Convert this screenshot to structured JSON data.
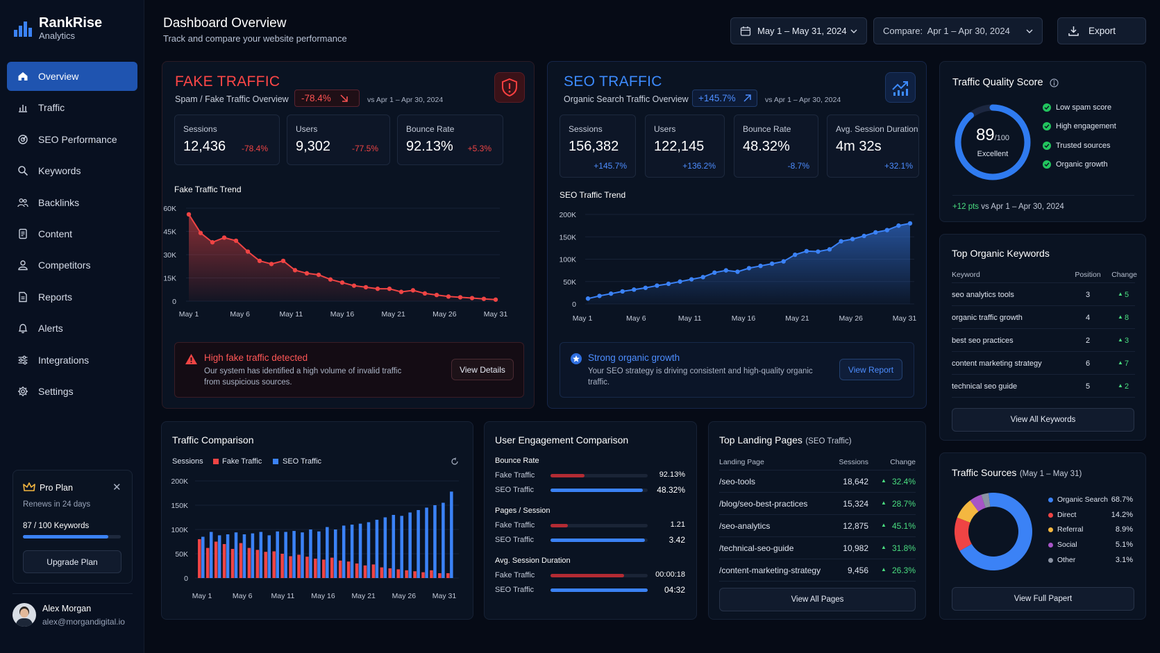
{
  "app": {
    "name": "RankRise",
    "subtitle": "Analytics"
  },
  "nav": [
    {
      "label": "Overview",
      "icon": "home-icon"
    },
    {
      "label": "Traffic",
      "icon": "bar-chart-icon"
    },
    {
      "label": "SEO Performance",
      "icon": "target-icon"
    },
    {
      "label": "Keywords",
      "icon": "search-icon"
    },
    {
      "label": "Backlinks",
      "icon": "users-icon"
    },
    {
      "label": "Content",
      "icon": "document-icon"
    },
    {
      "label": "Competitors",
      "icon": "person-icon"
    },
    {
      "label": "Reports",
      "icon": "report-icon"
    },
    {
      "label": "Alerts",
      "icon": "bell-icon"
    },
    {
      "label": "Integrations",
      "icon": "sliders-icon"
    },
    {
      "label": "Settings",
      "icon": "gear-icon"
    }
  ],
  "plan": {
    "title": "Pro Plan",
    "renews": "Renews in 24 days",
    "keywords": "87 / 100 Keywords",
    "usage": 0.87,
    "button": "Upgrade Plan"
  },
  "user": {
    "name": "Alex Morgan",
    "email": "alex@morgandigital.io"
  },
  "header": {
    "title": "Dashboard Overview",
    "subtitle": "Track and compare your website performance",
    "date_range": "May 1 – May 31, 2024",
    "compare": "Compare:  Apr 1 – Apr 30, 2024",
    "export": "Export"
  },
  "fake": {
    "title": "FAKE TRAFFIC",
    "subtitle": "Spam / Fake Traffic Overview",
    "change": "-78.4%",
    "vs": "vs Apr 1 – Apr 30, 2024",
    "stats": [
      {
        "label": "Sessions",
        "value": "12,436",
        "change": "-78.4%"
      },
      {
        "label": "Users",
        "value": "9,302",
        "change": "-77.5%"
      },
      {
        "label": "Bounce Rate",
        "value": "92.13%",
        "change": "+5.3%"
      }
    ],
    "trend_title": "Fake Traffic Trend",
    "alert": {
      "title": "High fake traffic detected",
      "text1": "Our system has identified a high volume of invalid traffic",
      "text2": "from suspicious sources.",
      "button": "View Details"
    }
  },
  "seo": {
    "title": "SEO TRAFFIC",
    "subtitle": "Organic Search Traffic Overview",
    "change": "+145.7%",
    "vs": "vs Apr 1 – Apr 30, 2024",
    "stats": [
      {
        "label": "Sessions",
        "value": "156,382",
        "change": "+145.7%"
      },
      {
        "label": "Users",
        "value": "122,145",
        "change": "+136.2%"
      },
      {
        "label": "Bounce Rate",
        "value": "48.32%",
        "change": "-8.7%"
      },
      {
        "label": "Avg. Session Duration",
        "value": "4m 32s",
        "change": "+32.1%"
      }
    ],
    "trend_title": "SEO Traffic Trend",
    "alert": {
      "title": "Strong organic growth",
      "text1": "Your SEO strategy is driving consistent and high-quality organic",
      "text2": "traffic.",
      "button": "View Report"
    }
  },
  "quality": {
    "title": "Traffic Quality Score",
    "score": "89",
    "max": "/100",
    "rating": "Excellent",
    "score_fraction": 0.89,
    "items": [
      "Low spam score",
      "High engagement",
      "Trusted sources",
      "Organic growth"
    ],
    "delta": "+12 pts",
    "delta_vs": "vs Apr 1 – Apr 30, 2024"
  },
  "keywords": {
    "title": "Top Organic Keywords",
    "headers": [
      "Keyword",
      "Position",
      "Change"
    ],
    "rows": [
      {
        "keyword": "seo analytics tools",
        "position": "3",
        "change": "5"
      },
      {
        "keyword": "organic traffic growth",
        "position": "4",
        "change": "8"
      },
      {
        "keyword": "best seo practices",
        "position": "2",
        "change": "3"
      },
      {
        "keyword": "content marketing strategy",
        "position": "6",
        "change": "7"
      },
      {
        "keyword": "technical seo guide",
        "position": "5",
        "change": "2"
      }
    ],
    "button": "View All Keywords"
  },
  "comparison": {
    "title": "Traffic Comparison",
    "label": "Sessions",
    "legend": [
      "Fake Traffic",
      "SEO Traffic"
    ]
  },
  "engagement": {
    "title": "User Engagement Comparison",
    "groups": [
      {
        "label": "Bounce Rate",
        "rows": [
          {
            "name": "Fake Traffic",
            "value": "92.13%",
            "fill": 0.35
          },
          {
            "name": "SEO Traffic",
            "value": "48.32%",
            "fill": 0.95
          }
        ]
      },
      {
        "label": "Pages / Session",
        "rows": [
          {
            "name": "Fake Traffic",
            "value": "1.21",
            "fill": 0.18
          },
          {
            "name": "SEO Traffic",
            "value": "3.42",
            "fill": 0.97
          }
        ]
      },
      {
        "label": "Avg. Session Duration",
        "rows": [
          {
            "name": "Fake Traffic",
            "value": "00:00:18",
            "fill": 0.76
          },
          {
            "name": "SEO Traffic",
            "value": "04:32",
            "fill": 1.0
          }
        ]
      }
    ]
  },
  "landing": {
    "title": "Top Landing Pages",
    "title_note": "(SEO Traffic)",
    "headers": [
      "Landing Page",
      "Sessions",
      "Change"
    ],
    "rows": [
      {
        "page": "/seo-tools",
        "sessions": "18,642",
        "change": "32.4%"
      },
      {
        "page": "/blog/seo-best-practices",
        "sessions": "15,324",
        "change": "28.7%"
      },
      {
        "page": "/seo-analytics",
        "sessions": "12,875",
        "change": "45.1%"
      },
      {
        "page": "/technical-seo-guide",
        "sessions": "10,982",
        "change": "31.8%"
      },
      {
        "page": "/content-marketing-strategy",
        "sessions": "9,456",
        "change": "26.3%"
      }
    ],
    "button": "View All Pages"
  },
  "sources": {
    "title": "Traffic Sources",
    "title_note": "(May 1 – May 31)",
    "button": "View Full Papert"
  },
  "chart_data": [
    {
      "type": "area",
      "title": "Fake Traffic Trend",
      "x_ticks": [
        "May 1",
        "May 6",
        "May 11",
        "May 16",
        "May 21",
        "May 26",
        "May 31"
      ],
      "y_ticks": [
        "60K",
        "45K",
        "30K",
        "15K",
        "0"
      ],
      "ylim": [
        0,
        60000
      ],
      "color": "#ef4444",
      "values": [
        56000,
        44000,
        38000,
        41000,
        39000,
        32000,
        26000,
        24000,
        26000,
        20000,
        18000,
        17000,
        14000,
        12000,
        10000,
        9000,
        8000,
        8000,
        6000,
        7000,
        5000,
        4000,
        3000,
        2500,
        2000,
        1500,
        1000
      ]
    },
    {
      "type": "area",
      "title": "SEO Traffic Trend",
      "x_ticks": [
        "May 1",
        "May 6",
        "May 11",
        "May 16",
        "May 21",
        "May 26",
        "May 31"
      ],
      "y_ticks": [
        "200K",
        "150K",
        "100K",
        "50K",
        "0"
      ],
      "ylim": [
        0,
        200000
      ],
      "color": "#3b82f6",
      "values": [
        12000,
        18000,
        23000,
        28000,
        32000,
        36000,
        41000,
        45000,
        50000,
        55000,
        60000,
        70000,
        75000,
        72000,
        80000,
        85000,
        90000,
        95000,
        110000,
        118000,
        117000,
        122000,
        140000,
        145000,
        152000,
        160000,
        165000,
        175000,
        180000
      ]
    },
    {
      "type": "bar",
      "title": "Traffic Comparison",
      "x_ticks": [
        "May 1",
        "May 6",
        "May 11",
        "May 16",
        "May 21",
        "May 26",
        "May 31"
      ],
      "y_ticks": [
        "200K",
        "150K",
        "100K",
        "50K",
        "0"
      ],
      "ylim": [
        0,
        200000
      ],
      "series": [
        {
          "name": "Fake Traffic",
          "color": "#ef4444",
          "values": [
            80000,
            62000,
            75000,
            70000,
            60000,
            72000,
            62000,
            58000,
            54000,
            55000,
            50000,
            45000,
            48000,
            44000,
            40000,
            38000,
            42000,
            36000,
            34000,
            30000,
            26000,
            28000,
            22000,
            20000,
            18000,
            16000,
            14000,
            12000,
            16000,
            10000,
            10000
          ]
        },
        {
          "name": "SEO Traffic",
          "color": "#3b82f6",
          "values": [
            85000,
            95000,
            88000,
            90000,
            94000,
            90000,
            92000,
            95000,
            88000,
            96000,
            95000,
            97000,
            94000,
            100000,
            96000,
            105000,
            100000,
            108000,
            110000,
            112000,
            115000,
            120000,
            125000,
            130000,
            128000,
            135000,
            140000,
            145000,
            150000,
            155000,
            178000
          ]
        }
      ]
    },
    {
      "type": "pie",
      "title": "Traffic Sources",
      "slices": [
        {
          "label": "Organic Search",
          "value": 68.7,
          "display": "68.7%",
          "color": "#3b82f6"
        },
        {
          "label": "Direct",
          "value": 14.2,
          "display": "14.2%",
          "color": "#ef4444"
        },
        {
          "label": "Referral",
          "value": 8.9,
          "display": "8.9%",
          "color": "#f4b740"
        },
        {
          "label": "Social",
          "value": 5.1,
          "display": "5.1%",
          "color": "#a855c7"
        },
        {
          "label": "Other",
          "value": 3.1,
          "display": "3.1%",
          "color": "#8b93a3"
        }
      ]
    }
  ]
}
